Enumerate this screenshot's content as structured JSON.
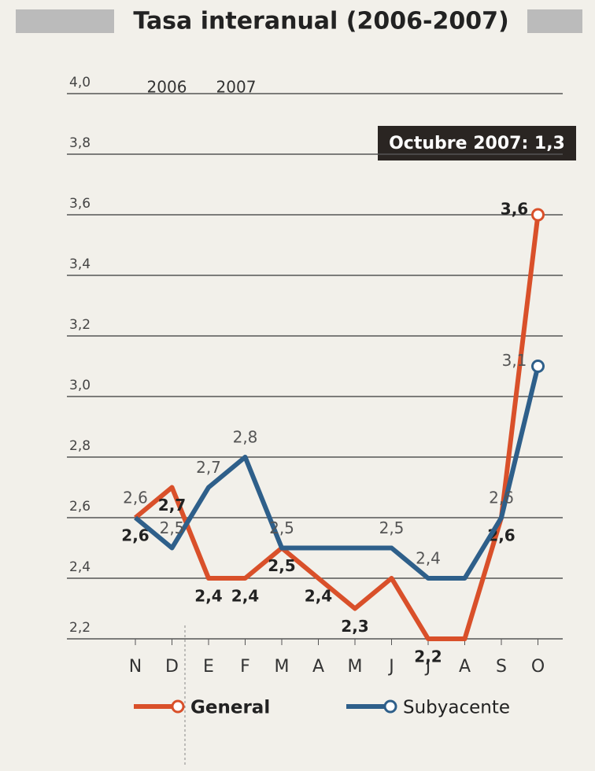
{
  "chart_data": {
    "type": "line",
    "title": "Tasa interanual (2006-2007)",
    "annotations": [
      "2006",
      "2007",
      "Octubre 2007: 1,3"
    ],
    "categories": [
      "N",
      "D",
      "E",
      "F",
      "M",
      "A",
      "M",
      "J",
      "J",
      "A",
      "S",
      "O"
    ],
    "series": [
      {
        "name": "General",
        "color": "#d9502a",
        "values": [
          2.6,
          2.7,
          2.4,
          2.4,
          2.5,
          2.4,
          2.3,
          2.4,
          2.2,
          2.2,
          2.6,
          3.6
        ],
        "value_labels": [
          "2,6",
          "2,7",
          "2,4",
          "2,4",
          "2,5",
          "2,4",
          "2,3",
          null,
          "2,2",
          null,
          "2,6",
          "3,6"
        ]
      },
      {
        "name": "Subyacente",
        "color": "#2e5f8a",
        "values": [
          2.6,
          2.5,
          2.7,
          2.8,
          2.5,
          2.5,
          2.5,
          2.5,
          2.4,
          2.4,
          2.6,
          3.1
        ],
        "value_labels": [
          "2,6",
          "2,5",
          "2,7",
          "2,8",
          "2,5",
          null,
          null,
          "2,5",
          "2,4",
          null,
          "2,6",
          "3,1"
        ]
      }
    ],
    "ylim": [
      2.2,
      4.0
    ],
    "yticks": [
      {
        "value": 2.2,
        "label": "2,2"
      },
      {
        "value": 2.4,
        "label": "2,4"
      },
      {
        "value": 2.6,
        "label": "2,6"
      },
      {
        "value": 2.8,
        "label": "2,8"
      },
      {
        "value": 3.0,
        "label": "3,0"
      },
      {
        "value": 3.2,
        "label": "3,2"
      },
      {
        "value": 3.4,
        "label": "3,4"
      },
      {
        "value": 3.6,
        "label": "3,6"
      },
      {
        "value": 3.8,
        "label": "3,8"
      },
      {
        "value": 4.0,
        "label": "4,0"
      }
    ],
    "grid": true,
    "legend": "bottom"
  }
}
